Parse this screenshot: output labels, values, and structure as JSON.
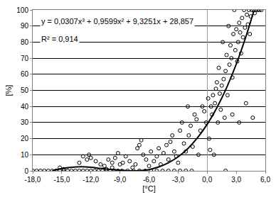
{
  "chart_data": {
    "type": "scatter",
    "x_label": "[°C]",
    "y_label": "[%]",
    "annotations": [
      "y = 0,0307x³ + 0,9599x² + 9,3251x + 28,857",
      "R² = 0,914"
    ],
    "xlim": [
      -18,
      6
    ],
    "ylim": [
      0,
      100
    ],
    "xticks": [
      {
        "value": -18,
        "label": "-18,0"
      },
      {
        "value": -15,
        "label": "-15,0"
      },
      {
        "value": -12,
        "label": "-12,0"
      },
      {
        "value": -9,
        "label": "-9,0"
      },
      {
        "value": -6,
        "label": "-6,0"
      },
      {
        "value": -3,
        "label": "-3,0"
      },
      {
        "value": 0,
        "label": "0,0"
      },
      {
        "value": 3,
        "label": "3,0"
      },
      {
        "value": 6,
        "label": "6,0"
      }
    ],
    "yticks": [
      0,
      10,
      20,
      30,
      40,
      50,
      60,
      70,
      80,
      90,
      100
    ],
    "grid": "y",
    "series": [
      {
        "type": "scatter",
        "marker": "circle-open",
        "color": "#000000",
        "x": [
          -18,
          -17.6,
          -17.2,
          -16.8,
          -16.4,
          -16,
          -15.6,
          -15.2,
          -14.8,
          -14.4,
          -14,
          -13.6,
          -13.2,
          -12.8,
          -12.4,
          -12,
          -11.6,
          -11.2,
          -10.8,
          -10.4,
          -10,
          -9.6,
          -9.2,
          -15.2,
          -14.8,
          -13.2,
          -12.8,
          -12.4,
          -12.2,
          -12,
          -11.5,
          -11,
          -10.6,
          -10.2,
          -9.8,
          -9.5,
          -9.2,
          -9,
          -8.7,
          -8.4,
          -8,
          -7.7,
          -7.4,
          -7.2,
          -7,
          -6.8,
          -6.6,
          -6.3,
          -6,
          -5.8,
          -5.5,
          -5.2,
          -5,
          -4.8,
          -4.5,
          -4.2,
          -4,
          -3.8,
          -3.6,
          -3.4,
          -3.2,
          -3,
          -2.8,
          -2.6,
          -2.4,
          -2.2,
          -2,
          -1.9,
          -1.7,
          -1.5,
          -1.3,
          -1.1,
          -0.9,
          -0.7,
          -0.5,
          -0.3,
          -0.1,
          0.1,
          0.2,
          0.3,
          0.4,
          0.5,
          0.6,
          0.8,
          0.9,
          1.0,
          1.1,
          1.2,
          1.3,
          1.4,
          1.5,
          1.6,
          1.7,
          1.8,
          1.9,
          2.0,
          2.1,
          2.2,
          2.3,
          2.4,
          2.5,
          2.6,
          2.7,
          2.8,
          2.9,
          3.0,
          3.1,
          3.2,
          3.3,
          3.4,
          3.5,
          3.6,
          3.7,
          3.8,
          3.9,
          4.0,
          4.1,
          4.2,
          4.3,
          4.4,
          4.5,
          4.6,
          4.7,
          4.8,
          4.9,
          5.0,
          5.2,
          5.4,
          5.6,
          3.3,
          2.6,
          1.9,
          0.7,
          -8.8,
          -8.2,
          -7.6,
          -7,
          -6.4,
          -5.8,
          -5.2,
          -4.6,
          -4,
          -3.4,
          -2.8,
          -2.2,
          -1.6,
          -10.4,
          -9.8
        ],
        "values": [
          0,
          0,
          0,
          0,
          0,
          0,
          0,
          0,
          0,
          0,
          0,
          0,
          0,
          0,
          0,
          0,
          0,
          0,
          0,
          0,
          0,
          0,
          0,
          2,
          1,
          5,
          9,
          7,
          10,
          8,
          6,
          4,
          3,
          7,
          5,
          8,
          11,
          4,
          5,
          9,
          6,
          2,
          4,
          14,
          16,
          19,
          10,
          7,
          3,
          12,
          6,
          9,
          14,
          4,
          11,
          16,
          7,
          18,
          22,
          12,
          9,
          5,
          25,
          30,
          17,
          12,
          40,
          22,
          28,
          15,
          35,
          32,
          10,
          25,
          40,
          37,
          30,
          45,
          20,
          13,
          40,
          35,
          47,
          42,
          51,
          55,
          30,
          64,
          48,
          38,
          53,
          80,
          57,
          33,
          62,
          72,
          47,
          90,
          66,
          78,
          70,
          58,
          85,
          100,
          75,
          88,
          68,
          80,
          92,
          86,
          73,
          95,
          83,
          100,
          89,
          42,
          97,
          91,
          100,
          85,
          96,
          100,
          33,
          100,
          98,
          100,
          100,
          100,
          100,
          30,
          35,
          0,
          10,
          0,
          0,
          0,
          0,
          0,
          0,
          0,
          0,
          0,
          0,
          0,
          0,
          0,
          1,
          2
        ]
      },
      {
        "type": "line",
        "line_style": "solid",
        "color": "#000000",
        "x": [
          -16,
          -15,
          -14,
          -13,
          -12,
          -11,
          -10,
          -9,
          -8,
          -7,
          -6,
          -5,
          -4,
          -3,
          -2,
          -1,
          0,
          1,
          2,
          3,
          4,
          4.5,
          4.8
        ],
        "values": [
          0,
          1.4,
          2.2,
          2.5,
          2.2,
          1.5,
          0.9,
          0.4,
          0,
          0.1,
          0.8,
          2.4,
          5,
          8.7,
          13.8,
          20.5,
          28.9,
          39.2,
          51.6,
          66.3,
          83.5,
          93.1,
          99.1
        ]
      }
    ]
  }
}
